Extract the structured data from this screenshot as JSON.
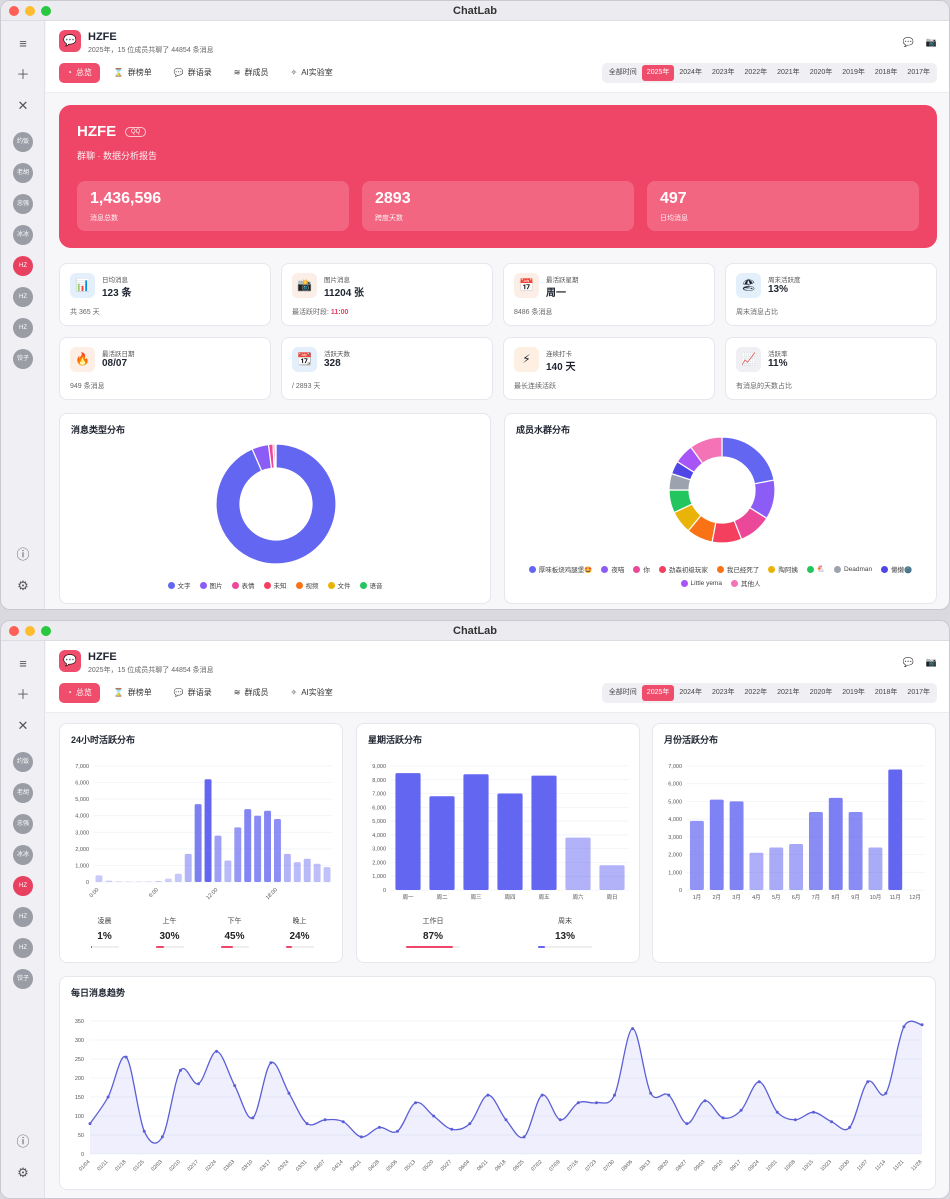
{
  "window": {
    "title": "ChatLab"
  },
  "sidebar": {
    "avatars": [
      "约饭",
      "老胡",
      "忠强",
      "冰冰",
      "HZ",
      "HZ",
      "HZ",
      "饺子"
    ],
    "active_index": 4
  },
  "header": {
    "group_name": "HZFE",
    "summary": "2025年，15 位成员共聊了 44854 条消息",
    "tabs": [
      {
        "label": "总览",
        "icon": "◔"
      },
      {
        "label": "群榜单",
        "icon": "⌛"
      },
      {
        "label": "群语录",
        "icon": "💬"
      },
      {
        "label": "群成员",
        "icon": "≋"
      },
      {
        "label": "AI实验室",
        "icon": "✧"
      }
    ],
    "years": [
      "全部时间",
      "2025年",
      "2024年",
      "2023年",
      "2022年",
      "2021年",
      "2020年",
      "2019年",
      "2018年",
      "2017年"
    ],
    "active_year": "2025年"
  },
  "hero": {
    "name": "HZFE",
    "badge": "QQ",
    "subtitle": "群聊 · 数据分析报告",
    "cards": [
      {
        "value": "1,436,596",
        "label": "消息总数"
      },
      {
        "value": "2893",
        "label": "跨度天数"
      },
      {
        "value": "497",
        "label": "日均消息"
      }
    ]
  },
  "stats": [
    {
      "icon": "📊",
      "bg": "#e3f0fb",
      "label": "日均消息",
      "value": "123 条",
      "foot": "共 365 天",
      "hl": ""
    },
    {
      "icon": "📸",
      "bg": "#fbeee6",
      "label": "图片消息",
      "value": "11204 张",
      "foot": "最活跃时段: ",
      "hl": "11:00"
    },
    {
      "icon": "📅",
      "bg": "#fbeee6",
      "label": "最活跃星期",
      "value": "周一",
      "foot": "8486 条消息",
      "hl": ""
    },
    {
      "icon": "🏖",
      "bg": "#e3f0fb",
      "label": "周末活跃度",
      "value": "13%",
      "foot": "周末消息占比",
      "hl": ""
    },
    {
      "icon": "🔥",
      "bg": "#fdeee6",
      "label": "最活跃日期",
      "value": "08/07",
      "foot": "949 条消息",
      "hl": ""
    },
    {
      "icon": "📆",
      "bg": "#e3f0fb",
      "label": "活跃天数",
      "value": "328",
      "foot": "/ 2893 天",
      "hl": ""
    },
    {
      "icon": "⚡",
      "bg": "#fdf0e2",
      "label": "连续打卡",
      "value": "140 天",
      "foot": "最长连续活跃",
      "hl": ""
    },
    {
      "icon": "📈",
      "bg": "#f0f0f4",
      "label": "活跃率",
      "value": "11%",
      "foot": "有消息的天数占比",
      "hl": ""
    }
  ],
  "colors": {
    "accent": "#ef4566",
    "indigo": "#6366f1"
  },
  "chart_data": [
    {
      "type": "pie",
      "title": "消息类型分布",
      "categories": [
        "文字",
        "图片",
        "表情",
        "未知",
        "视频",
        "文件",
        "语音"
      ],
      "values": [
        93.5,
        4.5,
        1.2,
        0.5,
        0.1,
        0.1,
        0.1
      ],
      "colors": [
        "#6366f1",
        "#8b5cf6",
        "#ec4899",
        "#f43f5e",
        "#f97316",
        "#eab308",
        "#22c55e"
      ]
    },
    {
      "type": "pie",
      "title": "成员水群分布",
      "categories": [
        "厚味板烧鸡腿堡🤩",
        "夜喵",
        "你",
        "劲森初级玩家",
        "我已经死了",
        "陶阿姨",
        "🐔",
        "Deadman",
        "懒懒🌚",
        "Little yema",
        "其他人"
      ],
      "values": [
        22,
        12,
        10,
        9,
        8,
        7,
        7,
        5,
        4,
        6,
        10
      ],
      "colors": [
        "#6366f1",
        "#8b5cf6",
        "#ec4899",
        "#f43f5e",
        "#f97316",
        "#eab308",
        "#22c55e",
        "#9ca3af",
        "#4f46e5",
        "#a855f7",
        "#f472b6"
      ]
    },
    {
      "type": "bar",
      "title": "24小时活跃分布",
      "categories": [
        "00:00",
        "01:00",
        "02:00",
        "03:00",
        "04:00",
        "05:00",
        "06:00",
        "07:00",
        "08:00",
        "09:00",
        "10:00",
        "11:00",
        "12:00",
        "13:00",
        "14:00",
        "15:00",
        "16:00",
        "17:00",
        "18:00",
        "19:00",
        "20:00",
        "21:00",
        "22:00",
        "23:00"
      ],
      "tick_labels": [
        "0:00",
        "6:00",
        "12:00",
        "18:00"
      ],
      "values": [
        400,
        80,
        40,
        20,
        20,
        30,
        60,
        200,
        500,
        1700,
        4700,
        6200,
        2800,
        1300,
        3300,
        4400,
        4000,
        4300,
        3800,
        1700,
        1200,
        1400,
        1100,
        900
      ],
      "ylim": [
        0,
        7000
      ],
      "yticks": [
        0,
        1000,
        2000,
        3000,
        4000,
        5000,
        6000,
        7000
      ],
      "footer": [
        {
          "label": "凌晨",
          "value": "1%",
          "pct": 1
        },
        {
          "label": "上午",
          "value": "30%",
          "pct": 30
        },
        {
          "label": "下午",
          "value": "45%",
          "pct": 45
        },
        {
          "label": "晚上",
          "value": "24%",
          "pct": 24
        }
      ]
    },
    {
      "type": "bar",
      "title": "星期活跃分布",
      "categories": [
        "周一",
        "周二",
        "周三",
        "周四",
        "周五",
        "周六",
        "周日"
      ],
      "values": [
        8486,
        6800,
        8400,
        7000,
        8300,
        3800,
        1800
      ],
      "ylim": [
        0,
        9000
      ],
      "yticks": [
        0,
        1000,
        2000,
        3000,
        4000,
        5000,
        6000,
        7000,
        8000,
        9000
      ],
      "footer": [
        {
          "label": "工作日",
          "value": "87%",
          "pct": 87
        },
        {
          "label": "周末",
          "value": "13%",
          "pct": 13
        }
      ]
    },
    {
      "type": "bar",
      "title": "月份活跃分布",
      "categories": [
        "1月",
        "2月",
        "3月",
        "4月",
        "5月",
        "6月",
        "7月",
        "8月",
        "9月",
        "10月",
        "11月",
        "12月"
      ],
      "values": [
        3900,
        5100,
        5000,
        2100,
        2400,
        2600,
        4400,
        5200,
        4400,
        2400,
        6800,
        0
      ],
      "ylim": [
        0,
        7000
      ],
      "yticks": [
        0,
        1000,
        2000,
        3000,
        4000,
        5000,
        6000,
        7000
      ]
    },
    {
      "type": "area",
      "title": "每日消息趋势",
      "x": [
        "01/04",
        "01/11",
        "01/18",
        "01/25",
        "02/03",
        "02/10",
        "02/17",
        "02/24",
        "03/03",
        "03/10",
        "03/17",
        "03/24",
        "03/31",
        "04/07",
        "04/14",
        "04/21",
        "04/28",
        "05/06",
        "05/13",
        "05/20",
        "05/27",
        "06/04",
        "06/11",
        "06/18",
        "06/25",
        "07/02",
        "07/09",
        "07/16",
        "07/23",
        "07/30",
        "08/06",
        "08/13",
        "08/20",
        "08/27",
        "09/03",
        "09/10",
        "09/17",
        "09/24",
        "10/01",
        "10/08",
        "10/15",
        "10/23",
        "10/30",
        "11/07",
        "11/14",
        "11/21",
        "11/28"
      ],
      "values": [
        80,
        150,
        255,
        60,
        45,
        220,
        185,
        270,
        180,
        95,
        240,
        160,
        80,
        90,
        85,
        45,
        70,
        60,
        135,
        100,
        65,
        80,
        155,
        90,
        45,
        155,
        90,
        135,
        135,
        155,
        330,
        160,
        155,
        80,
        140,
        95,
        115,
        190,
        110,
        90,
        110,
        85,
        70,
        190,
        160,
        335,
        340
      ],
      "ylim": [
        0,
        350
      ],
      "yticks": [
        0,
        50,
        100,
        150,
        200,
        250,
        300,
        350
      ]
    }
  ]
}
